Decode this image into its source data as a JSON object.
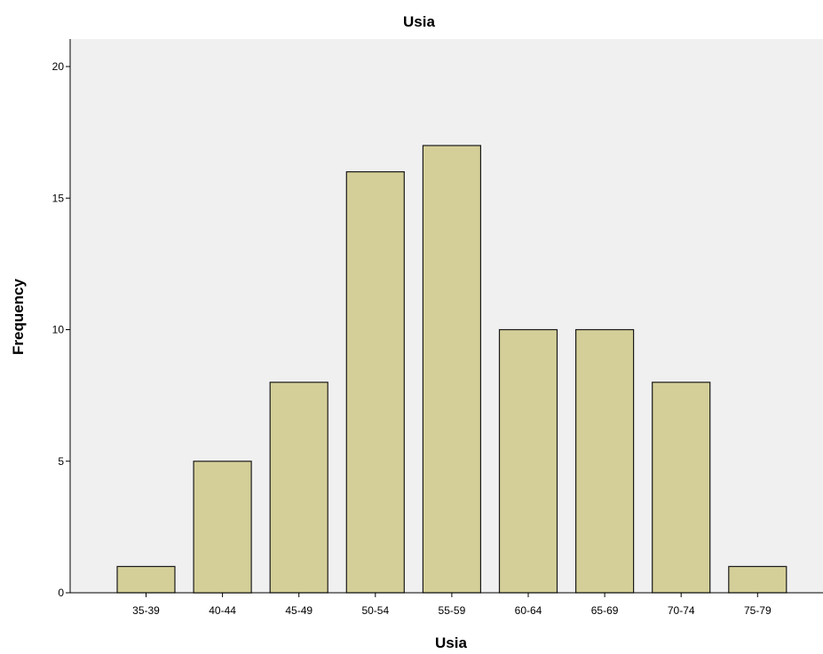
{
  "chart_data": {
    "type": "bar",
    "title": "Usia",
    "xlabel": "Usia",
    "ylabel": "Frequency",
    "categories": [
      "35-39",
      "40-44",
      "45-49",
      "50-54",
      "55-59",
      "60-64",
      "65-69",
      "70-74",
      "75-79"
    ],
    "values": [
      1,
      5,
      8,
      16,
      17,
      10,
      10,
      8,
      1
    ],
    "ylim": [
      0,
      21
    ],
    "yticks": [
      0,
      5,
      10,
      15,
      20
    ],
    "grid": false,
    "legend": "none",
    "colors": {
      "bar_fill": "#d4cf98",
      "bar_stroke": "#1a1a1a",
      "plot_background": "#f0f0f0",
      "axis": "#000000"
    }
  }
}
